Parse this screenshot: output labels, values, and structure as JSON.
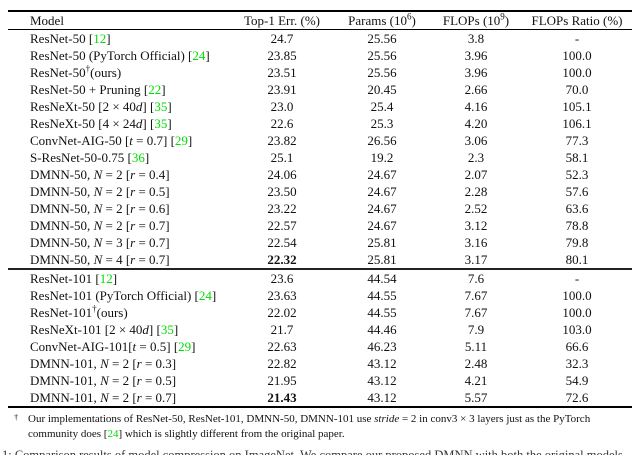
{
  "colors": {
    "cite_green": "#00dd00",
    "text": "#111111",
    "rule": "#000000"
  },
  "table": {
    "headers": [
      {
        "key": "model",
        "align": "left",
        "segments": [
          {
            "t": "Model",
            "s": "n"
          }
        ]
      },
      {
        "key": "top1",
        "align": "center",
        "segments": [
          {
            "t": "Top-1 Err. (%)",
            "s": "n"
          }
        ]
      },
      {
        "key": "params",
        "align": "center",
        "segments": [
          {
            "t": "Params (10",
            "s": "n"
          },
          {
            "t": "6",
            "s": "sup"
          },
          {
            "t": ")",
            "s": "n"
          }
        ]
      },
      {
        "key": "flops",
        "align": "center",
        "segments": [
          {
            "t": "FLOPs (10",
            "s": "n"
          },
          {
            "t": "9",
            "s": "sup"
          },
          {
            "t": ")",
            "s": "n"
          }
        ]
      },
      {
        "key": "ratio",
        "align": "center",
        "segments": [
          {
            "t": "FLOPs Ratio (%)",
            "s": "n"
          }
        ]
      }
    ],
    "rows": [
      {
        "model": [
          {
            "t": "ResNet-50 [",
            "s": "n"
          },
          {
            "t": "12",
            "s": "c"
          },
          {
            "t": "]",
            "s": "n"
          }
        ],
        "top1": "24.7",
        "bold": false,
        "params": "25.56",
        "flops": "3.8",
        "ratio": "-",
        "section_start": false
      },
      {
        "model": [
          {
            "t": "ResNet-50 (PyTorch Official) [",
            "s": "n"
          },
          {
            "t": "24",
            "s": "c"
          },
          {
            "t": "]",
            "s": "n"
          }
        ],
        "top1": "23.85",
        "bold": false,
        "params": "25.56",
        "flops": "3.96",
        "ratio": "100.0",
        "section_start": false
      },
      {
        "model": [
          {
            "t": "ResNet-50",
            "s": "n"
          },
          {
            "t": "†",
            "s": "sup"
          },
          {
            "t": "(ours)",
            "s": "n"
          }
        ],
        "top1": "23.51",
        "bold": false,
        "params": "25.56",
        "flops": "3.96",
        "ratio": "100.0",
        "section_start": false
      },
      {
        "model": [
          {
            "t": "ResNet-50 + Pruning [",
            "s": "n"
          },
          {
            "t": "22",
            "s": "c"
          },
          {
            "t": "]",
            "s": "n"
          }
        ],
        "top1": "23.91",
        "bold": false,
        "params": "20.45",
        "flops": "2.66",
        "ratio": "70.0",
        "section_start": false
      },
      {
        "model": [
          {
            "t": "ResNeXt-50 [2 × 40",
            "s": "n"
          },
          {
            "t": "d",
            "s": "i"
          },
          {
            "t": "] [",
            "s": "n"
          },
          {
            "t": "35",
            "s": "c"
          },
          {
            "t": "]",
            "s": "n"
          }
        ],
        "top1": "23.0",
        "bold": false,
        "params": "25.4",
        "flops": "4.16",
        "ratio": "105.1",
        "section_start": false
      },
      {
        "model": [
          {
            "t": "ResNeXt-50 [4 × 24",
            "s": "n"
          },
          {
            "t": "d",
            "s": "i"
          },
          {
            "t": "] [",
            "s": "n"
          },
          {
            "t": "35",
            "s": "c"
          },
          {
            "t": "]",
            "s": "n"
          }
        ],
        "top1": "22.6",
        "bold": false,
        "params": "25.3",
        "flops": "4.20",
        "ratio": "106.1",
        "section_start": false
      },
      {
        "model": [
          {
            "t": "ConvNet-AIG-50 [",
            "s": "n"
          },
          {
            "t": "t",
            "s": "i"
          },
          {
            "t": " = 0.7] [",
            "s": "n"
          },
          {
            "t": "29",
            "s": "c"
          },
          {
            "t": "]",
            "s": "n"
          }
        ],
        "top1": "23.82",
        "bold": false,
        "params": "26.56",
        "flops": "3.06",
        "ratio": "77.3",
        "section_start": false
      },
      {
        "model": [
          {
            "t": "S-ResNet-50-0.75 [",
            "s": "n"
          },
          {
            "t": "36",
            "s": "c"
          },
          {
            "t": "]",
            "s": "n"
          }
        ],
        "top1": "25.1",
        "bold": false,
        "params": "19.2",
        "flops": "2.3",
        "ratio": "58.1",
        "section_start": false
      },
      {
        "model": [
          {
            "t": "DMNN-50, ",
            "s": "n"
          },
          {
            "t": "N",
            "s": "i"
          },
          {
            "t": " = 2 [",
            "s": "n"
          },
          {
            "t": "r",
            "s": "i"
          },
          {
            "t": " = 0.4]",
            "s": "n"
          }
        ],
        "top1": "24.06",
        "bold": false,
        "params": "24.67",
        "flops": "2.07",
        "ratio": "52.3",
        "section_start": false
      },
      {
        "model": [
          {
            "t": "DMNN-50, ",
            "s": "n"
          },
          {
            "t": "N",
            "s": "i"
          },
          {
            "t": " = 2 [",
            "s": "n"
          },
          {
            "t": "r",
            "s": "i"
          },
          {
            "t": " = 0.5]",
            "s": "n"
          }
        ],
        "top1": "23.50",
        "bold": false,
        "params": "24.67",
        "flops": "2.28",
        "ratio": "57.6",
        "section_start": false
      },
      {
        "model": [
          {
            "t": "DMNN-50, ",
            "s": "n"
          },
          {
            "t": "N",
            "s": "i"
          },
          {
            "t": " = 2 [",
            "s": "n"
          },
          {
            "t": "r",
            "s": "i"
          },
          {
            "t": " = 0.6]",
            "s": "n"
          }
        ],
        "top1": "23.22",
        "bold": false,
        "params": "24.67",
        "flops": "2.52",
        "ratio": "63.6",
        "section_start": false
      },
      {
        "model": [
          {
            "t": "DMNN-50, ",
            "s": "n"
          },
          {
            "t": "N",
            "s": "i"
          },
          {
            "t": " = 2 [",
            "s": "n"
          },
          {
            "t": "r",
            "s": "i"
          },
          {
            "t": " = 0.7]",
            "s": "n"
          }
        ],
        "top1": "22.57",
        "bold": false,
        "params": "24.67",
        "flops": "3.12",
        "ratio": "78.8",
        "section_start": false
      },
      {
        "model": [
          {
            "t": "DMNN-50, ",
            "s": "n"
          },
          {
            "t": "N",
            "s": "i"
          },
          {
            "t": " = 3 [",
            "s": "n"
          },
          {
            "t": "r",
            "s": "i"
          },
          {
            "t": " = 0.7]",
            "s": "n"
          }
        ],
        "top1": "22.54",
        "bold": false,
        "params": "25.81",
        "flops": "3.16",
        "ratio": "79.8",
        "section_start": false
      },
      {
        "model": [
          {
            "t": "DMNN-50, ",
            "s": "n"
          },
          {
            "t": "N",
            "s": "i"
          },
          {
            "t": " = 4 [",
            "s": "n"
          },
          {
            "t": "r",
            "s": "i"
          },
          {
            "t": " = 0.7]",
            "s": "n"
          }
        ],
        "top1": "22.32",
        "bold": true,
        "params": "25.81",
        "flops": "3.17",
        "ratio": "80.1",
        "section_start": false
      },
      {
        "model": [
          {
            "t": "ResNet-101 [",
            "s": "n"
          },
          {
            "t": "12",
            "s": "c"
          },
          {
            "t": "]",
            "s": "n"
          }
        ],
        "top1": "23.6",
        "bold": false,
        "params": "44.54",
        "flops": "7.6",
        "ratio": "-",
        "section_start": true
      },
      {
        "model": [
          {
            "t": "ResNet-101 (PyTorch Official) [",
            "s": "n"
          },
          {
            "t": "24",
            "s": "c"
          },
          {
            "t": "]",
            "s": "n"
          }
        ],
        "top1": "23.63",
        "bold": false,
        "params": "44.55",
        "flops": "7.67",
        "ratio": "100.0",
        "section_start": false
      },
      {
        "model": [
          {
            "t": "ResNet-101",
            "s": "n"
          },
          {
            "t": "†",
            "s": "sup"
          },
          {
            "t": "(ours)",
            "s": "n"
          }
        ],
        "top1": "22.02",
        "bold": false,
        "params": "44.55",
        "flops": "7.67",
        "ratio": "100.0",
        "section_start": false
      },
      {
        "model": [
          {
            "t": "ResNeXt-101 [2 × 40",
            "s": "n"
          },
          {
            "t": "d",
            "s": "i"
          },
          {
            "t": "] [",
            "s": "n"
          },
          {
            "t": "35",
            "s": "c"
          },
          {
            "t": "]",
            "s": "n"
          }
        ],
        "top1": "21.7",
        "bold": false,
        "params": "44.46",
        "flops": "7.9",
        "ratio": "103.0",
        "section_start": false
      },
      {
        "model": [
          {
            "t": "ConvNet-AIG-101[",
            "s": "n"
          },
          {
            "t": "t",
            "s": "i"
          },
          {
            "t": " = 0.5] [",
            "s": "n"
          },
          {
            "t": "29",
            "s": "c"
          },
          {
            "t": "]",
            "s": "n"
          }
        ],
        "top1": "22.63",
        "bold": false,
        "params": "46.23",
        "flops": "5.11",
        "ratio": "66.6",
        "section_start": false
      },
      {
        "model": [
          {
            "t": "DMNN-101, ",
            "s": "n"
          },
          {
            "t": "N",
            "s": "i"
          },
          {
            "t": " = 2 [",
            "s": "n"
          },
          {
            "t": "r",
            "s": "i"
          },
          {
            "t": " = 0.3]",
            "s": "n"
          }
        ],
        "top1": "22.82",
        "bold": false,
        "params": "43.12",
        "flops": "2.48",
        "ratio": "32.3",
        "section_start": false
      },
      {
        "model": [
          {
            "t": "DMNN-101, ",
            "s": "n"
          },
          {
            "t": "N",
            "s": "i"
          },
          {
            "t": " = 2 [",
            "s": "n"
          },
          {
            "t": "r",
            "s": "i"
          },
          {
            "t": " = 0.5]",
            "s": "n"
          }
        ],
        "top1": "21.95",
        "bold": false,
        "params": "43.12",
        "flops": "4.21",
        "ratio": "54.9",
        "section_start": false
      },
      {
        "model": [
          {
            "t": "DMNN-101, ",
            "s": "n"
          },
          {
            "t": "N",
            "s": "i"
          },
          {
            "t": " = 2 [",
            "s": "n"
          },
          {
            "t": "r",
            "s": "i"
          },
          {
            "t": " = 0.7]",
            "s": "n"
          }
        ],
        "top1": "21.43",
        "bold": true,
        "params": "43.12",
        "flops": "5.57",
        "ratio": "72.6",
        "section_start": false
      }
    ]
  },
  "footnote": {
    "marker": "†",
    "lines": [
      [
        {
          "t": "Our implementations of ResNet-50, ResNet-101, DMNN-50, DMNN-101 use ",
          "s": "n"
        },
        {
          "t": "stride",
          "s": "i"
        },
        {
          "t": " = 2 in conv3 × 3 layers just as the PyTorch",
          "s": "n"
        }
      ],
      [
        {
          "t": "community does [",
          "s": "n"
        },
        {
          "t": "24",
          "s": "c"
        },
        {
          "t": "] which is slightly different from the original paper.",
          "s": "n"
        }
      ]
    ]
  },
  "caption_fragment": "1: Comparison results of model compression on ImageNet. We compare our proposed DMNN with both the original models"
}
